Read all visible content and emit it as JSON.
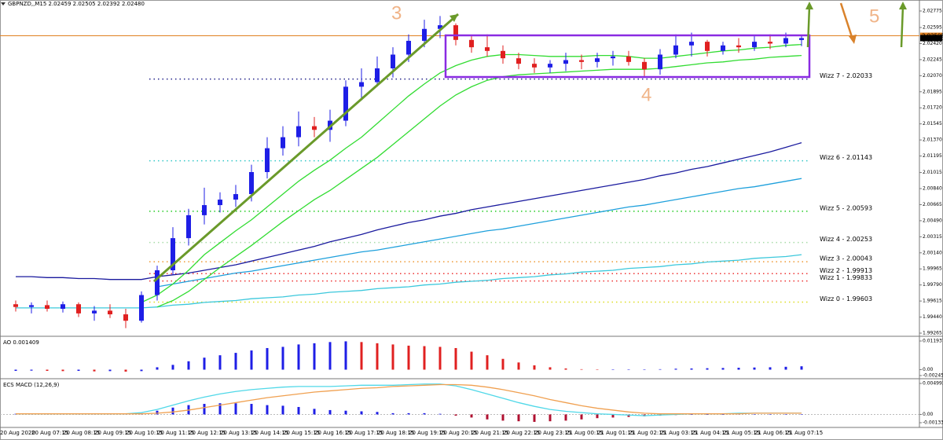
{
  "chart_data": [
    {
      "type": "candlestick",
      "title": "GBPNZD,,M15  2.02459 2.02505 2.02392 2.02480",
      "annotations": [
        "3",
        "4",
        "5"
      ],
      "up_color": "#1e1ee6",
      "down_color": "#e02020",
      "categories": [
        "20 Aug 2020",
        null,
        "20 Aug 07:15",
        null,
        "20 Aug 08:15",
        null,
        "20 Aug 09:15",
        null,
        "20 Aug 10:15",
        null,
        "20 Aug 11:15",
        null,
        "20 Aug 12:15",
        null,
        "20 Aug 13:15",
        null,
        "20 Aug 14:15",
        null,
        "20 Aug 15:15",
        null,
        "20 Aug 16:15",
        null,
        "20 Aug 17:15",
        null,
        "20 Aug 18:15",
        null,
        "20 Aug 19:15",
        null,
        "20 Aug 20:15",
        null,
        "20 Aug 21:15",
        null,
        "20 Aug 22:15",
        null,
        "20 Aug 23:15",
        null,
        "21 Aug 00:15",
        null,
        "21 Aug 01:15",
        null,
        "21 Aug 02:15",
        null,
        "21 Aug 03:15",
        null,
        "21 Aug 04:15",
        null,
        "21 Aug 05:15",
        null,
        "21 Aug 06:15",
        null,
        "21 Aug 07:15"
      ],
      "ohlc": [
        [
          1.9958,
          1.9962,
          1.995,
          1.9955
        ],
        [
          1.9955,
          1.996,
          1.9948,
          1.9957
        ],
        [
          1.9957,
          1.9962,
          1.995,
          1.9953
        ],
        [
          1.9953,
          1.9961,
          1.9949,
          1.9958
        ],
        [
          1.9958,
          1.996,
          1.9944,
          1.9948
        ],
        [
          1.9948,
          1.9956,
          1.994,
          1.9951
        ],
        [
          1.9951,
          1.9958,
          1.9943,
          1.9947
        ],
        [
          1.9947,
          1.9953,
          1.9932,
          1.994
        ],
        [
          1.994,
          1.9972,
          1.9938,
          1.9968
        ],
        [
          1.9968,
          2.0,
          1.9962,
          1.9995
        ],
        [
          1.9995,
          2.0042,
          1.999,
          2.003
        ],
        [
          2.003,
          2.0062,
          2.0022,
          2.0055
        ],
        [
          2.0055,
          2.0085,
          2.0045,
          2.0066
        ],
        [
          2.0066,
          2.008,
          2.0058,
          2.0072
        ],
        [
          2.0072,
          2.0088,
          2.0064,
          2.0078
        ],
        [
          2.0078,
          2.011,
          2.007,
          2.0102
        ],
        [
          2.0102,
          2.014,
          2.0095,
          2.0128
        ],
        [
          2.0128,
          2.0152,
          2.012,
          2.014
        ],
        [
          2.014,
          2.0168,
          2.013,
          2.0152
        ],
        [
          2.0152,
          2.0162,
          2.014,
          2.0148
        ],
        [
          2.0148,
          2.017,
          2.0135,
          2.0158
        ],
        [
          2.0158,
          2.0202,
          2.0152,
          2.0195
        ],
        [
          2.0195,
          2.0215,
          2.018,
          2.02
        ],
        [
          2.02,
          2.0228,
          2.0195,
          2.0215
        ],
        [
          2.0215,
          2.0238,
          2.0205,
          2.023
        ],
        [
          2.023,
          2.0252,
          2.0222,
          2.0245
        ],
        [
          2.0245,
          2.0268,
          2.0238,
          2.0258
        ],
        [
          2.0258,
          2.0272,
          2.0248,
          2.0262
        ],
        [
          2.0262,
          2.0264,
          2.024,
          2.0246
        ],
        [
          2.0246,
          2.025,
          2.0232,
          2.0238
        ],
        [
          2.0238,
          2.0252,
          2.0228,
          2.0234
        ],
        [
          2.0234,
          2.024,
          2.022,
          2.0226
        ],
        [
          2.0226,
          2.0232,
          2.0214,
          2.022
        ],
        [
          2.022,
          2.0226,
          2.021,
          2.0216
        ],
        [
          2.0216,
          2.0224,
          2.021,
          2.022
        ],
        [
          2.022,
          2.0232,
          2.0212,
          2.0224
        ],
        [
          2.0224,
          2.023,
          2.0214,
          2.0222
        ],
        [
          2.0222,
          2.0232,
          2.0216,
          2.0226
        ],
        [
          2.0226,
          2.0234,
          2.0218,
          2.0228
        ],
        [
          2.0228,
          2.0234,
          2.0218,
          2.0222
        ],
        [
          2.0222,
          2.0226,
          2.0206,
          2.0214
        ],
        [
          2.0214,
          2.0236,
          2.0208,
          2.023
        ],
        [
          2.023,
          2.0252,
          2.0226,
          2.024
        ],
        [
          2.024,
          2.0254,
          2.0228,
          2.0244
        ],
        [
          2.0244,
          2.0246,
          2.0228,
          2.0234
        ],
        [
          2.0234,
          2.0244,
          2.023,
          2.024
        ],
        [
          2.024,
          2.0248,
          2.0232,
          2.0238
        ],
        [
          2.0238,
          2.025,
          2.0234,
          2.0244
        ],
        [
          2.0244,
          2.0252,
          2.0236,
          2.0242
        ],
        [
          2.0242,
          2.0254,
          2.0238,
          2.0248
        ],
        [
          2.02459,
          2.02505,
          2.02392,
          2.0248
        ]
      ],
      "series": [
        {
          "color": "#1a1a9e",
          "values": [
            1.9988,
            1.9988,
            1.9987,
            1.9987,
            1.9986,
            1.9986,
            1.9985,
            1.9985,
            1.9985,
            1.9988,
            1.999,
            1.9992,
            1.9995,
            1.9998,
            2.0001,
            2.0005,
            2.0009,
            2.0013,
            2.0017,
            2.0021,
            2.0026,
            2.003,
            2.0034,
            2.0039,
            2.0043,
            2.0047,
            2.005,
            2.0054,
            2.0057,
            2.0061,
            2.0064,
            2.0067,
            2.007,
            2.0073,
            2.0076,
            2.0079,
            2.0082,
            2.0085,
            2.0088,
            2.0091,
            2.0094,
            2.0098,
            2.0101,
            2.0105,
            2.0108,
            2.0112,
            2.0116,
            2.012,
            2.0124,
            2.0129,
            2.0134
          ]
        },
        {
          "color": "#3cc8dc",
          "values": [
            1.9954,
            1.9954,
            1.9954,
            1.9954,
            1.9954,
            1.9954,
            1.9954,
            1.9954,
            1.9954,
            1.9955,
            1.9957,
            1.9958,
            1.996,
            1.9961,
            1.9962,
            1.9964,
            1.9965,
            1.9966,
            1.9968,
            1.9969,
            1.9971,
            1.9972,
            1.9973,
            1.9975,
            1.9976,
            1.9977,
            1.9979,
            1.998,
            1.9982,
            1.9983,
            1.9984,
            1.9986,
            1.9987,
            1.9988,
            1.999,
            1.9991,
            1.9993,
            1.9994,
            1.9995,
            1.9997,
            1.9998,
            1.9999,
            2.0001,
            2.0002,
            2.0004,
            2.0005,
            2.0006,
            2.0008,
            2.0009,
            2.001,
            2.0012
          ]
        },
        {
          "color": "#1ea0dc",
          "values": [
            null,
            null,
            null,
            null,
            null,
            null,
            null,
            null,
            null,
            1.9977,
            1.998,
            1.9983,
            1.9986,
            1.9989,
            1.9992,
            1.9994,
            1.9997,
            2.0,
            2.0003,
            2.0006,
            2.0009,
            2.0012,
            2.0015,
            2.0017,
            2.002,
            2.0023,
            2.0026,
            2.0029,
            2.0032,
            2.0035,
            2.0038,
            2.004,
            2.0043,
            2.0046,
            2.0049,
            2.0052,
            2.0055,
            2.0058,
            2.0061,
            2.0064,
            2.0066,
            2.0069,
            2.0072,
            2.0075,
            2.0078,
            2.0081,
            2.0084,
            2.0086,
            2.0089,
            2.0092,
            2.0095
          ]
        },
        {
          "color": "#32dc32",
          "values": [
            null,
            null,
            null,
            null,
            null,
            null,
            null,
            null,
            1.996,
            1.9968,
            1.998,
            1.9995,
            2.0012,
            2.0025,
            2.0038,
            2.005,
            2.0064,
            2.0078,
            2.0092,
            2.0104,
            2.0115,
            2.0128,
            2.014,
            2.0155,
            2.017,
            2.0185,
            2.0198,
            2.021,
            2.0218,
            2.0224,
            2.0228,
            2.023,
            2.023,
            2.0229,
            2.0228,
            2.0228,
            2.0228,
            2.0229,
            2.0229,
            2.0228,
            2.0226,
            2.0226,
            2.0228,
            2.023,
            2.0232,
            2.0234,
            2.0235,
            2.0237,
            2.0238,
            2.024,
            2.0241
          ]
        },
        {
          "color": "#32dc32",
          "values": [
            null,
            null,
            null,
            null,
            null,
            null,
            null,
            null,
            null,
            1.9955,
            1.9962,
            1.9972,
            1.9985,
            1.9998,
            2.001,
            2.0022,
            2.0035,
            2.0048,
            2.006,
            2.0072,
            2.0082,
            2.0094,
            2.0106,
            2.0118,
            2.0132,
            2.0146,
            2.016,
            2.0174,
            2.0186,
            2.0195,
            2.0202,
            2.0206,
            2.0208,
            2.0209,
            2.021,
            2.0211,
            2.0212,
            2.0213,
            2.0214,
            2.0214,
            2.0214,
            2.0215,
            2.0217,
            2.0219,
            2.0221,
            2.0222,
            2.0224,
            2.0225,
            2.0227,
            2.0228,
            2.0229
          ]
        }
      ],
      "levels": [
        {
          "label": "Wizz 7 - 2.02033",
          "value": 2.02033,
          "color": "#22228a"
        },
        {
          "label": "Wizz 6 - 2.01143",
          "value": 2.01143,
          "color": "#33c8c8"
        },
        {
          "label": "Wizz 5 - 2.00593",
          "value": 2.00593,
          "color": "#22cc22"
        },
        {
          "label": "Wizz 4 - 2.00253",
          "value": 2.00253,
          "color": "#a8dca8"
        },
        {
          "label": "Wizz 3 - 2.00043",
          "value": 2.00043,
          "color": "#ee9933"
        },
        {
          "label": "Wizz 2 - 1.99913",
          "value": 1.99913,
          "color": "#ee3333"
        },
        {
          "label": "Wizz 1 - 1.99833",
          "value": 1.99833,
          "color": "#ee3333"
        },
        {
          "label": "Wizz 0 - 1.99603",
          "value": 1.99603,
          "color": "#dddd22"
        }
      ],
      "price_levels": [
        {
          "value": 2.02505,
          "label": "2.02505",
          "color": "#e08020"
        },
        {
          "value": 2.0248,
          "label": "2.02480",
          "color": "#000000"
        }
      ],
      "ylim": [
        1.99265,
        2.02775
      ],
      "yticks": [
        2.02775,
        2.02595,
        {
          "value": 2.0242,
          "label": "2.02420"
        },
        2.02245,
        {
          "value": 2.0207,
          "label": "2.02070"
        },
        2.01895,
        {
          "value": 2.0172,
          "label": "2.01720"
        },
        2.01545,
        {
          "value": 2.0137,
          "label": "2.01370"
        },
        2.01195,
        2.01015,
        {
          "value": 2.0084,
          "label": "2.00840"
        },
        2.00665,
        {
          "value": 2.0049,
          "label": "2.00490"
        },
        2.00315,
        {
          "value": 2.0014,
          "label": "2.00140"
        },
        1.99965,
        {
          "value": 1.9979,
          "label": "1.99790"
        },
        1.99615,
        {
          "value": 1.9944,
          "label": "1.99440"
        },
        1.99265
      ]
    },
    {
      "type": "bar",
      "title": "AO 0.001409",
      "up_color": "#1e1ee6",
      "down_color": "#e02020",
      "values": [
        -0.0005,
        -0.0004,
        -0.0005,
        -0.0006,
        -0.0005,
        -0.0007,
        -0.0006,
        -0.0008,
        -0.0006,
        0.001,
        0.002,
        0.0035,
        0.005,
        0.006,
        0.007,
        0.008,
        0.009,
        0.0095,
        0.0105,
        0.011,
        0.0115,
        0.0118,
        0.0115,
        0.011,
        0.0105,
        0.01,
        0.0098,
        0.0095,
        0.009,
        0.0075,
        0.006,
        0.0045,
        0.003,
        0.0018,
        0.001,
        0.0005,
        0.0002,
        0.0001,
        0.0001,
        0.0001,
        0.0001,
        0.0002,
        0.0004,
        0.0005,
        0.0006,
        0.0007,
        0.0008,
        0.0009,
        0.001,
        0.0012,
        0.001409
      ],
      "ylim": [
        -0.002456,
        0.011937
      ],
      "yticks": [
        0.011937,
        {
          "value": 0,
          "label": "0.00"
        },
        -0.002456
      ]
    },
    {
      "type": "combo",
      "title": "ECS MACD (12,26,9)",
      "pos_color": "#1e1ee6",
      "neg_color": "#b01030",
      "values": [
        0.0001,
        0.0001,
        0.0001,
        0.0001,
        0.0001,
        0.0001,
        0.0001,
        0.0001,
        0.0002,
        0.0006,
        0.0011,
        0.0015,
        0.0017,
        0.0018,
        0.0018,
        0.0017,
        0.0015,
        0.0014,
        0.0012,
        0.0009,
        0.0007,
        0.0006,
        0.0005,
        0.0004,
        0.0002,
        0.0002,
        0.0002,
        0.0001,
        -0.0002,
        -0.0005,
        -0.0008,
        -0.001,
        -0.0011,
        -0.0012,
        -0.0011,
        -0.001,
        -0.0008,
        -0.0006,
        -0.0005,
        -0.0004,
        -0.0003,
        -0.0002,
        -0.0001,
        0.0,
        0.0,
        0.0,
        0.0001,
        0.0,
        0.0,
        0.0,
        0.0
      ],
      "series": [
        {
          "color": "#50d8e8",
          "values": [
            0.0001,
            0.0001,
            0.0001,
            0.0001,
            0.0001,
            0.0001,
            0.0001,
            0.0001,
            0.0003,
            0.0008,
            0.0015,
            0.0022,
            0.0028,
            0.0033,
            0.0037,
            0.004,
            0.0042,
            0.0044,
            0.0045,
            0.0045,
            0.0045,
            0.0046,
            0.0047,
            0.0047,
            0.0047,
            0.0048,
            0.0049,
            0.0049,
            0.0046,
            0.004,
            0.0033,
            0.0026,
            0.0019,
            0.0013,
            0.0008,
            0.0005,
            0.0003,
            0.0001,
            0.0,
            -0.0001,
            -0.0002,
            -0.0001,
            0.0,
            0.0001,
            0.0001,
            0.0001,
            0.0002,
            0.0002,
            0.0002,
            0.0002,
            0.0002
          ]
        },
        {
          "color": "#f0a050",
          "values": [
            0.0001,
            0.0001,
            0.0001,
            0.0001,
            0.0001,
            0.0001,
            0.0001,
            0.0001,
            0.0001,
            0.0002,
            0.0004,
            0.0007,
            0.0011,
            0.0015,
            0.0019,
            0.0023,
            0.0027,
            0.003,
            0.0033,
            0.0036,
            0.0038,
            0.004,
            0.0042,
            0.0043,
            0.0045,
            0.0046,
            0.0047,
            0.0048,
            0.0048,
            0.0047,
            0.0044,
            0.004,
            0.0035,
            0.003,
            0.0024,
            0.0019,
            0.0014,
            0.001,
            0.0007,
            0.0004,
            0.0002,
            0.0001,
            0.0001,
            0.0001,
            0.0001,
            0.0001,
            0.0001,
            0.0002,
            0.0002,
            0.0002,
            0.0002
          ]
        }
      ],
      "ylim": [
        -0.001334,
        0.004993
      ],
      "yticks": [
        0.004993,
        {
          "value": 0,
          "label": "0.00"
        },
        -0.001334
      ]
    }
  ]
}
